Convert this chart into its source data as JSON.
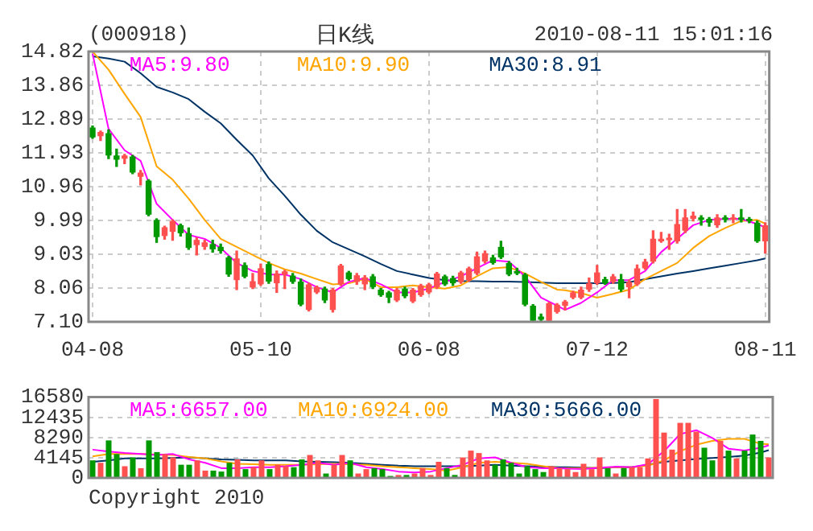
{
  "chart_data": [
    {
      "type": "candlestick",
      "title": "(000918)",
      "subtitle": "日K线",
      "annotations": [
        "2010-08-11 15:01:16"
      ],
      "grid": true,
      "categories": [
        "04-08",
        null,
        null,
        null,
        null,
        null,
        null,
        null,
        null,
        null,
        null,
        null,
        null,
        null,
        null,
        null,
        null,
        null,
        null,
        null,
        null,
        "05-10",
        null,
        null,
        null,
        null,
        null,
        null,
        null,
        null,
        null,
        null,
        null,
        null,
        null,
        null,
        null,
        null,
        null,
        null,
        null,
        null,
        "06-08",
        null,
        null,
        null,
        null,
        null,
        null,
        null,
        null,
        null,
        null,
        null,
        null,
        null,
        null,
        null,
        null,
        null,
        null,
        null,
        null,
        "07-12",
        null,
        null,
        null,
        null,
        null,
        null,
        null,
        null,
        null,
        null,
        null,
        null,
        null,
        null,
        null,
        null,
        null,
        null,
        null,
        null,
        "08-11"
      ],
      "ylim": [
        7.1,
        14.82
      ],
      "yticks": [
        {
          "value": 7.1,
          "label": "7.10"
        },
        {
          "value": 8.06,
          "label": "8.06"
        },
        {
          "value": 9.03,
          "label": "9.03"
        },
        {
          "value": 9.99,
          "label": "9.99"
        },
        {
          "value": 10.96,
          "label": "10.96"
        },
        {
          "value": 11.93,
          "label": "11.93"
        },
        {
          "value": 12.89,
          "label": "12.89"
        },
        {
          "value": 13.86,
          "label": "13.86"
        },
        {
          "value": 14.82,
          "label": "14.82"
        }
      ],
      "ohlc": [
        [
          12.65,
          12.69,
          12.34,
          12.37
        ],
        [
          12.4,
          12.55,
          12.28,
          12.52
        ],
        [
          12.49,
          12.58,
          11.76,
          11.85
        ],
        [
          11.85,
          12.03,
          11.54,
          11.73
        ],
        [
          11.76,
          11.88,
          11.62,
          11.85
        ],
        [
          11.82,
          11.85,
          11.33,
          11.36
        ],
        [
          11.24,
          11.42,
          11.01,
          11.36
        ],
        [
          11.13,
          11.16,
          10.13,
          10.16
        ],
        [
          10.01,
          10.04,
          9.37,
          9.52
        ],
        [
          9.55,
          9.83,
          9.46,
          9.8
        ],
        [
          9.67,
          10.01,
          9.43,
          9.98
        ],
        [
          9.86,
          9.89,
          9.55,
          9.63
        ],
        [
          9.63,
          9.78,
          9.17,
          9.21
        ],
        [
          9.29,
          9.5,
          9.01,
          9.44
        ],
        [
          9.24,
          9.43,
          9.17,
          9.37
        ],
        [
          9.32,
          9.43,
          9.09,
          9.17
        ],
        [
          9.24,
          9.32,
          9.06,
          9.12
        ],
        [
          8.94,
          8.97,
          8.4,
          8.45
        ],
        [
          8.29,
          9.12,
          8.02,
          8.91
        ],
        [
          8.72,
          8.78,
          8.36,
          8.39
        ],
        [
          8.08,
          8.48,
          8.05,
          8.26
        ],
        [
          8.17,
          8.75,
          8.14,
          8.63
        ],
        [
          8.75,
          8.81,
          8.2,
          8.25
        ],
        [
          8.2,
          8.55,
          7.94,
          8.48
        ],
        [
          8.45,
          8.57,
          8.05,
          8.54
        ],
        [
          8.42,
          8.48,
          8.2,
          8.24
        ],
        [
          8.25,
          8.32,
          7.56,
          7.59
        ],
        [
          7.44,
          8.2,
          7.41,
          8.17
        ],
        [
          7.94,
          8.12,
          7.91,
          8.09
        ],
        [
          8.05,
          8.09,
          7.65,
          7.71
        ],
        [
          7.44,
          8.05,
          7.38,
          8.02
        ],
        [
          8.17,
          8.74,
          8.14,
          8.71
        ],
        [
          8.51,
          8.54,
          8.29,
          8.32
        ],
        [
          8.24,
          8.48,
          8.17,
          8.43
        ],
        [
          8.17,
          8.42,
          8.02,
          8.37
        ],
        [
          8.4,
          8.45,
          8.05,
          8.09
        ],
        [
          8.02,
          8.05,
          7.83,
          7.86
        ],
        [
          7.94,
          7.97,
          7.65,
          7.79
        ],
        [
          7.71,
          8.05,
          7.68,
          8.02
        ],
        [
          8.05,
          8.09,
          7.79,
          7.83
        ],
        [
          7.68,
          8.05,
          7.65,
          8.02
        ],
        [
          7.86,
          8.17,
          7.83,
          8.14
        ],
        [
          7.94,
          8.2,
          7.91,
          8.17
        ],
        [
          8.09,
          8.51,
          8.05,
          8.48
        ],
        [
          8.4,
          8.43,
          8.14,
          8.17
        ],
        [
          8.35,
          8.4,
          8.14,
          8.2
        ],
        [
          8.24,
          8.54,
          8.2,
          8.51
        ],
        [
          8.29,
          8.66,
          8.26,
          8.63
        ],
        [
          8.48,
          9.09,
          8.45,
          8.97
        ],
        [
          8.82,
          9.12,
          8.78,
          9.06
        ],
        [
          8.94,
          9.0,
          8.75,
          8.78
        ],
        [
          9.24,
          9.4,
          8.91,
          8.94
        ],
        [
          8.78,
          8.82,
          8.42,
          8.45
        ],
        [
          8.55,
          8.63,
          8.45,
          8.48
        ],
        [
          8.45,
          8.48,
          7.56,
          7.59
        ],
        [
          7.56,
          7.59,
          7.1,
          7.13
        ],
        [
          7.25,
          7.32,
          7.1,
          7.16
        ],
        [
          7.13,
          7.65,
          7.1,
          7.63
        ],
        [
          7.38,
          7.62,
          7.35,
          7.59
        ],
        [
          7.56,
          7.71,
          7.44,
          7.68
        ],
        [
          7.79,
          7.97,
          7.76,
          7.94
        ],
        [
          7.79,
          8.09,
          7.76,
          8.02
        ],
        [
          8.02,
          8.35,
          7.97,
          8.2
        ],
        [
          8.2,
          8.71,
          8.17,
          8.51
        ],
        [
          8.32,
          8.37,
          8.17,
          8.2
        ],
        [
          8.24,
          8.45,
          8.2,
          8.4
        ],
        [
          8.32,
          8.45,
          7.97,
          8.02
        ],
        [
          8.09,
          8.29,
          7.79,
          8.24
        ],
        [
          8.17,
          8.72,
          8.14,
          8.63
        ],
        [
          8.63,
          8.88,
          8.6,
          8.82
        ],
        [
          8.82,
          9.7,
          8.78,
          9.47
        ],
        [
          9.4,
          9.65,
          9.37,
          9.47
        ],
        [
          9.43,
          9.6,
          9.17,
          9.5
        ],
        [
          9.4,
          10.31,
          9.35,
          9.89
        ],
        [
          9.7,
          10.31,
          9.65,
          10.08
        ],
        [
          10.04,
          10.23,
          9.98,
          10.13
        ],
        [
          10.08,
          10.13,
          9.86,
          10.01
        ],
        [
          10.04,
          10.08,
          9.83,
          9.93
        ],
        [
          9.86,
          10.16,
          9.8,
          10.08
        ],
        [
          10.08,
          10.13,
          9.95,
          10.01
        ],
        [
          10.01,
          10.16,
          9.93,
          10.08
        ],
        [
          10.08,
          10.31,
          9.95,
          10.01
        ],
        [
          10.04,
          10.08,
          9.93,
          9.98
        ],
        [
          9.93,
          9.98,
          9.37,
          9.4
        ],
        [
          9.4,
          9.93,
          9.06,
          9.86
        ]
      ],
      "colors": [
        "#009900",
        "#ff5050",
        "#009900",
        "#009900",
        "#ff5050",
        "#009900",
        "#ff5050",
        "#009900",
        "#009900",
        "#ff5050",
        "#ff5050",
        "#009900",
        "#009900",
        "#ff5050",
        "#ff5050",
        "#009900",
        "#009900",
        "#009900",
        "#ff5050",
        "#009900",
        "#ff5050",
        "#ff5050",
        "#009900",
        "#ff5050",
        "#ff5050",
        "#009900",
        "#009900",
        "#ff5050",
        "#ff5050",
        "#009900",
        "#ff5050",
        "#ff5050",
        "#009900",
        "#ff5050",
        "#ff5050",
        "#009900",
        "#009900",
        "#009900",
        "#ff5050",
        "#009900",
        "#ff5050",
        "#ff5050",
        "#ff5050",
        "#ff5050",
        "#009900",
        "#009900",
        "#ff5050",
        "#ff5050",
        "#ff5050",
        "#ff5050",
        "#009900",
        "#009900",
        "#009900",
        "#009900",
        "#009900",
        "#009900",
        "#009900",
        "#ff5050",
        "#ff5050",
        "#ff5050",
        "#ff5050",
        "#ff5050",
        "#ff5050",
        "#ff5050",
        "#009900",
        "#ff5050",
        "#009900",
        "#ff5050",
        "#ff5050",
        "#ff5050",
        "#ff5050",
        "#ff5050",
        "#ff5050",
        "#ff5050",
        "#ff5050",
        "#ff5050",
        "#009900",
        "#009900",
        "#ff5050",
        "#009900",
        "#ff5050",
        "#009900",
        "#009900",
        "#009900",
        "#ff5050"
      ],
      "series": [
        {
          "type": "line",
          "name": "MA5:9.80",
          "color": "#ff00ff",
          "values": [
            14.76,
            null,
            12.61,
            null,
            12.0,
            null,
            11.7,
            null,
            10.47,
            null,
            10.01,
            null,
            9.58,
            null,
            9.47,
            null,
            9.21,
            null,
            8.78,
            null,
            8.55,
            null,
            8.45,
            null,
            8.45,
            null,
            8.32,
            null,
            8.09,
            null,
            7.94,
            null,
            8.24,
            null,
            8.35,
            null,
            8.17,
            null,
            7.94,
            null,
            7.94,
            null,
            8.05,
            null,
            8.24,
            null,
            8.4,
            null,
            8.63,
            null,
            8.86,
            null,
            8.82,
            null,
            8.4,
            null,
            7.79,
            null,
            7.56,
            7.44,
            null,
            7.64,
            null,
            7.94,
            null,
            8.29,
            null,
            8.29,
            null,
            8.55,
            null,
            9.09,
            null,
            9.47,
            null,
            9.86,
            null,
            10.01,
            null,
            10.04,
            null,
            10.04,
            null,
            9.89,
            9.8
          ]
        },
        {
          "type": "line",
          "name": "MA10:9.90",
          "color": "#ffa500",
          "values": [
            14.82,
            null,
            14.3,
            null,
            13.61,
            null,
            12.95,
            null,
            11.54,
            null,
            11.16,
            null,
            10.62,
            null,
            10.01,
            null,
            9.47,
            null,
            9.24,
            null,
            9.01,
            null,
            8.78,
            null,
            8.6,
            null,
            8.48,
            null,
            8.32,
            null,
            8.17,
            null,
            8.2,
            null,
            8.32,
            null,
            8.09,
            null,
            8.09,
            null,
            8.14,
            null,
            8.09,
            null,
            8.05,
            null,
            8.14,
            null,
            8.4,
            null,
            8.63,
            null,
            8.66,
            null,
            8.48,
            null,
            8.24,
            null,
            8.02,
            8.0,
            null,
            7.92,
            null,
            7.79,
            null,
            7.9,
            null,
            8.02,
            null,
            8.32,
            null,
            8.55,
            null,
            8.78,
            null,
            9.21,
            null,
            9.55,
            null,
            9.78,
            null,
            9.98,
            null,
            10.01,
            9.9
          ]
        },
        {
          "type": "line",
          "name": "MA30:8.91",
          "color": "#003366",
          "values": [
            14.68,
            null,
            14.62,
            null,
            14.53,
            null,
            14.2,
            null,
            13.81,
            null,
            13.65,
            null,
            13.46,
            null,
            13.1,
            null,
            12.77,
            null,
            12.3,
            null,
            11.85,
            null,
            11.2,
            null,
            10.7,
            null,
            10.16,
            null,
            9.7,
            null,
            9.37,
            null,
            9.17,
            null,
            8.97,
            null,
            8.75,
            null,
            8.55,
            null,
            8.45,
            null,
            8.35,
            null,
            8.29,
            null,
            8.26,
            null,
            8.26,
            null,
            8.25,
            null,
            8.25,
            null,
            8.24,
            null,
            8.22,
            null,
            8.2,
            8.2,
            null,
            8.2,
            null,
            8.2,
            null,
            8.21,
            null,
            8.23,
            null,
            8.32,
            null,
            8.4,
            null,
            8.48,
            null,
            8.55,
            null,
            8.63,
            null,
            8.7,
            null,
            8.78,
            null,
            8.86,
            8.91
          ]
        }
      ]
    },
    {
      "type": "bar",
      "annotations": [
        "Copyright 2010"
      ],
      "grid": "y",
      "categories": [
        null,
        null,
        null,
        null,
        null,
        null,
        null,
        null,
        null,
        null,
        null,
        null,
        null,
        null,
        null,
        null,
        null,
        null,
        null,
        null,
        null,
        null,
        null,
        null,
        null,
        null,
        null,
        null,
        null,
        null,
        null,
        null,
        null,
        null,
        null,
        null,
        null,
        null,
        null,
        null,
        null,
        null,
        null,
        null,
        null,
        null,
        null,
        null,
        null,
        null,
        null,
        null,
        null,
        null,
        null,
        null,
        null,
        null,
        null,
        null,
        null,
        null,
        null,
        null,
        null,
        null,
        null,
        null,
        null,
        null,
        null,
        null,
        null,
        null,
        null,
        null,
        null,
        null,
        null,
        null,
        null,
        null,
        null,
        null,
        null
      ],
      "ylim": [
        0,
        16580
      ],
      "yticks": [
        0,
        4145,
        8290,
        12435,
        16580
      ],
      "series": [
        {
          "type": "bar",
          "values": [
            3600,
            3100,
            7700,
            4900,
            2400,
            4200,
            2000,
            7700,
            5300,
            4900,
            4200,
            2700,
            2700,
            3600,
            1500,
            1500,
            1300,
            3100,
            3800,
            1800,
            2200,
            3600,
            1800,
            2700,
            2400,
            2200,
            3800,
            4700,
            3600,
            900,
            2700,
            4700,
            3600,
            900,
            1800,
            2000,
            1800,
            400,
            600,
            600,
            900,
            2000,
            600,
            3300,
            2000,
            600,
            4200,
            5600,
            5100,
            3600,
            2700,
            3800,
            3100,
            900,
            2400,
            1800,
            1200,
            2400,
            2000,
            1800,
            1200,
            2900,
            1800,
            4200,
            2000,
            900,
            2000,
            2200,
            2200,
            4000,
            16200,
            9300,
            5800,
            11300,
            11300,
            9500,
            6200,
            3600,
            7600,
            5600,
            4000,
            5600,
            8900,
            7600,
            4200
          ],
          "colors": [
            "#009900",
            "#ff5050",
            "#009900",
            "#009900",
            "#ff5050",
            "#009900",
            "#ff5050",
            "#009900",
            "#009900",
            "#ff5050",
            "#ff5050",
            "#009900",
            "#009900",
            "#ff5050",
            "#ff5050",
            "#009900",
            "#009900",
            "#009900",
            "#ff5050",
            "#009900",
            "#ff5050",
            "#ff5050",
            "#009900",
            "#ff5050",
            "#ff5050",
            "#009900",
            "#009900",
            "#ff5050",
            "#ff5050",
            "#009900",
            "#ff5050",
            "#ff5050",
            "#009900",
            "#ff5050",
            "#ff5050",
            "#009900",
            "#009900",
            "#009900",
            "#ff5050",
            "#009900",
            "#ff5050",
            "#ff5050",
            "#ff5050",
            "#ff5050",
            "#009900",
            "#009900",
            "#ff5050",
            "#ff5050",
            "#ff5050",
            "#ff5050",
            "#009900",
            "#009900",
            "#009900",
            "#009900",
            "#009900",
            "#009900",
            "#009900",
            "#ff5050",
            "#ff5050",
            "#ff5050",
            "#ff5050",
            "#ff5050",
            "#ff5050",
            "#ff5050",
            "#009900",
            "#ff5050",
            "#009900",
            "#ff5050",
            "#ff5050",
            "#ff5050",
            "#ff5050",
            "#ff5050",
            "#ff5050",
            "#ff5050",
            "#ff5050",
            "#ff5050",
            "#009900",
            "#009900",
            "#ff5050",
            "#009900",
            "#ff5050",
            "#009900",
            "#009900",
            "#009900",
            "#ff5050"
          ]
        },
        {
          "type": "line",
          "name": "MA5:6657.00",
          "color": "#ff00ff",
          "values": [
            5800,
            null,
            5400,
            null,
            5100,
            null,
            4900,
            null,
            4700,
            null,
            4900,
            null,
            3800,
            null,
            3100,
            null,
            2000,
            null,
            2000,
            null,
            2200,
            null,
            2200,
            null,
            2400,
            null,
            2700,
            null,
            3100,
            null,
            2700,
            null,
            3100,
            null,
            2200,
            null,
            1800,
            null,
            1300,
            null,
            1100,
            null,
            1300,
            null,
            2000,
            null,
            2700,
            null,
            4000,
            null,
            4200,
            null,
            3100,
            null,
            2200,
            null,
            2000,
            null,
            2000,
            1900,
            null,
            1800,
            null,
            2100,
            null,
            2300,
            null,
            2200,
            null,
            2800,
            null,
            5500,
            null,
            9000,
            null,
            9800,
            null,
            8200,
            null,
            6000,
            null,
            5600,
            null,
            6200,
            6700
          ]
        },
        {
          "type": "line",
          "name": "MA10:6924.00",
          "color": "#ffa500",
          "values": [
            4400,
            null,
            4900,
            null,
            4900,
            null,
            4900,
            null,
            4800,
            null,
            4700,
            null,
            4300,
            null,
            4000,
            null,
            3400,
            null,
            2900,
            null,
            2800,
            null,
            2700,
            null,
            2700,
            null,
            2700,
            null,
            2800,
            null,
            2900,
            null,
            2800,
            null,
            2700,
            null,
            2400,
            null,
            2200,
            null,
            2000,
            null,
            1800,
            null,
            1500,
            null,
            2200,
            null,
            3100,
            null,
            3300,
            null,
            3100,
            null,
            2900,
            null,
            2400,
            null,
            2000,
            2000,
            null,
            2000,
            null,
            2100,
            null,
            2200,
            null,
            2200,
            null,
            2500,
            null,
            3600,
            null,
            5500,
            null,
            6800,
            null,
            7600,
            null,
            8000,
            null,
            8000,
            null,
            7000,
            6900
          ]
        },
        {
          "type": "line",
          "name": "MA30:5666.00",
          "color": "#003366",
          "values": [
            3300,
            null,
            3600,
            null,
            4000,
            null,
            4000,
            null,
            4000,
            null,
            4100,
            null,
            4200,
            null,
            4000,
            null,
            3800,
            null,
            3700,
            null,
            3600,
            null,
            3600,
            null,
            3600,
            null,
            3400,
            null,
            3300,
            null,
            3200,
            null,
            3100,
            null,
            2900,
            null,
            2700,
            null,
            2500,
            null,
            2400,
            null,
            2400,
            null,
            2400,
            null,
            2400,
            null,
            2500,
            null,
            2700,
            null,
            2500,
            null,
            2400,
            null,
            2300,
            null,
            2200,
            2200,
            null,
            2100,
            null,
            2000,
            null,
            2200,
            null,
            2200,
            null,
            2700,
            null,
            3300,
            null,
            3600,
            null,
            3900,
            null,
            4100,
            null,
            4300,
            null,
            4600,
            null,
            5200,
            5700
          ]
        }
      ]
    }
  ]
}
